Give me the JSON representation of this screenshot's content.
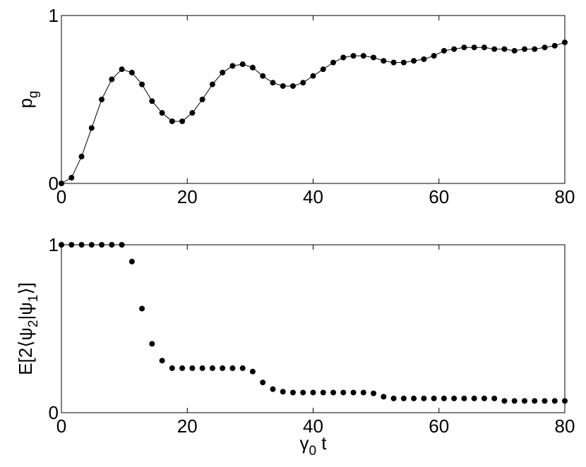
{
  "chart_data": [
    {
      "type": "line",
      "markers": true,
      "color": "#000000",
      "ylabel": [
        "p",
        "g"
      ],
      "x": [
        0,
        1.6,
        3.2,
        4.8,
        6.4,
        8,
        9.6,
        11.2,
        12.8,
        14.4,
        16,
        17.6,
        19.2,
        20.8,
        22.4,
        24,
        25.6,
        27.2,
        28.8,
        30.4,
        32,
        33.6,
        35.2,
        36.8,
        38.4,
        40,
        41.6,
        43.2,
        44.8,
        46.4,
        48,
        49.6,
        51.2,
        52.8,
        54.4,
        56,
        57.6,
        59.2,
        60.8,
        62.4,
        64,
        65.6,
        67.2,
        68.8,
        70.4,
        72,
        73.6,
        75.2,
        76.8,
        78.4,
        80
      ],
      "values": [
        0,
        0.034,
        0.16,
        0.33,
        0.5,
        0.62,
        0.68,
        0.66,
        0.59,
        0.49,
        0.42,
        0.37,
        0.37,
        0.42,
        0.5,
        0.59,
        0.66,
        0.7,
        0.71,
        0.69,
        0.64,
        0.6,
        0.58,
        0.58,
        0.6,
        0.64,
        0.68,
        0.72,
        0.75,
        0.76,
        0.76,
        0.75,
        0.73,
        0.72,
        0.72,
        0.73,
        0.74,
        0.76,
        0.79,
        0.8,
        0.81,
        0.81,
        0.81,
        0.8,
        0.8,
        0.79,
        0.8,
        0.8,
        0.81,
        0.82,
        0.84
      ],
      "xlim": [
        0,
        80
      ],
      "xticks": [
        0,
        20,
        40,
        60,
        80
      ],
      "ylim": [
        0,
        1
      ],
      "yticks": [
        0,
        1
      ]
    },
    {
      "type": "scatter",
      "color": "#000000",
      "ylabel": [
        "E[2⟨ψ",
        "2",
        "|ψ",
        "1",
        "⟩]"
      ],
      "xlabel": [
        "γ",
        "0",
        " t"
      ],
      "x": [
        0,
        1.6,
        3.2,
        4.8,
        6.4,
        8,
        9.6,
        11.2,
        12.8,
        14.4,
        16,
        17.6,
        19.2,
        20.8,
        22.4,
        24,
        25.6,
        27.2,
        28.8,
        30.4,
        32,
        33.6,
        35.2,
        36.8,
        38.4,
        40,
        41.6,
        43.2,
        44.8,
        46.4,
        48,
        49.6,
        51.2,
        52.8,
        54.4,
        56,
        57.6,
        59.2,
        60.8,
        62.4,
        64,
        65.6,
        67.2,
        68.8,
        70.4,
        72,
        73.6,
        75.2,
        76.8,
        78.4,
        80
      ],
      "values": [
        1,
        1,
        1,
        1,
        1,
        1,
        1,
        0.9,
        0.62,
        0.41,
        0.31,
        0.265,
        0.265,
        0.265,
        0.265,
        0.265,
        0.265,
        0.265,
        0.265,
        0.245,
        0.18,
        0.14,
        0.125,
        0.12,
        0.12,
        0.12,
        0.12,
        0.12,
        0.12,
        0.12,
        0.12,
        0.115,
        0.095,
        0.085,
        0.085,
        0.085,
        0.085,
        0.085,
        0.085,
        0.085,
        0.085,
        0.085,
        0.085,
        0.085,
        0.07,
        0.07,
        0.07,
        0.07,
        0.07,
        0.07,
        0.07
      ],
      "xlim": [
        0,
        80
      ],
      "xticks": [
        0,
        20,
        40,
        60,
        80
      ],
      "ylim": [
        0,
        1
      ],
      "yticks": [
        0,
        1
      ]
    }
  ]
}
